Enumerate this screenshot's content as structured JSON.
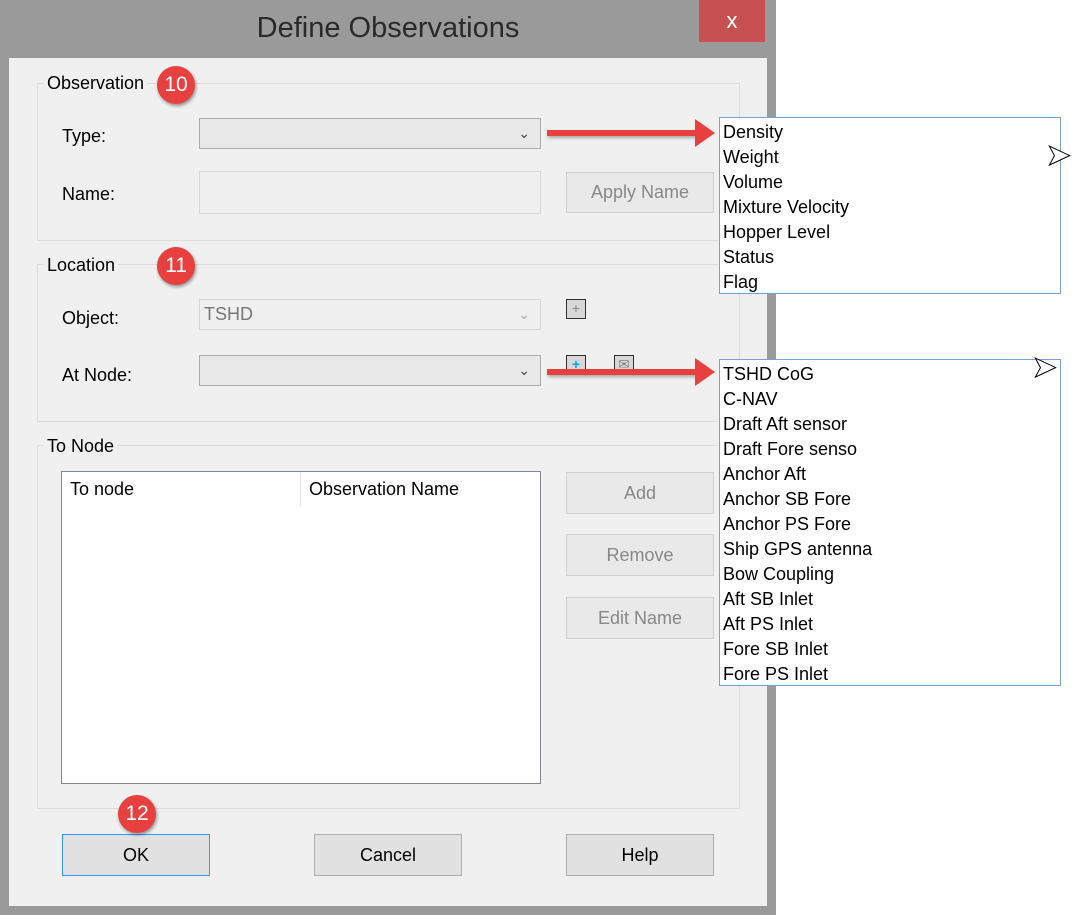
{
  "window": {
    "title": "Define Observations",
    "close_label": "x"
  },
  "observation": {
    "group_label": "Observation",
    "badge": "10",
    "type_label": "Type:",
    "type_value": "",
    "name_label": "Name:",
    "name_value": "",
    "apply_name": "Apply Name"
  },
  "location": {
    "group_label": "Location",
    "badge": "11",
    "object_label": "Object:",
    "object_value": "TSHD",
    "at_node_label": "At Node:",
    "at_node_value": ""
  },
  "to_node": {
    "group_label": "To Node",
    "columns": [
      "To node",
      "Observation Name"
    ],
    "add": "Add",
    "remove": "Remove",
    "edit_name": "Edit Name"
  },
  "footer": {
    "badge": "12",
    "ok": "OK",
    "cancel": "Cancel",
    "help": "Help"
  },
  "type_options": [
    "Density",
    "Weight",
    "Volume",
    "Mixture Velocity",
    "Hopper Level",
    "Status",
    "Flag"
  ],
  "node_options": [
    "TSHD CoG",
    "C-NAV",
    "Draft Aft sensor",
    "Draft Fore senso",
    "Anchor Aft",
    "Anchor SB Fore",
    "Anchor PS Fore",
    "Ship GPS antenna",
    "Bow Coupling",
    "Aft SB Inlet",
    "Aft PS Inlet",
    "Fore SB Inlet",
    "Fore PS Inlet"
  ],
  "colors": {
    "annotation": "#e8403f",
    "close": "#c75050"
  }
}
